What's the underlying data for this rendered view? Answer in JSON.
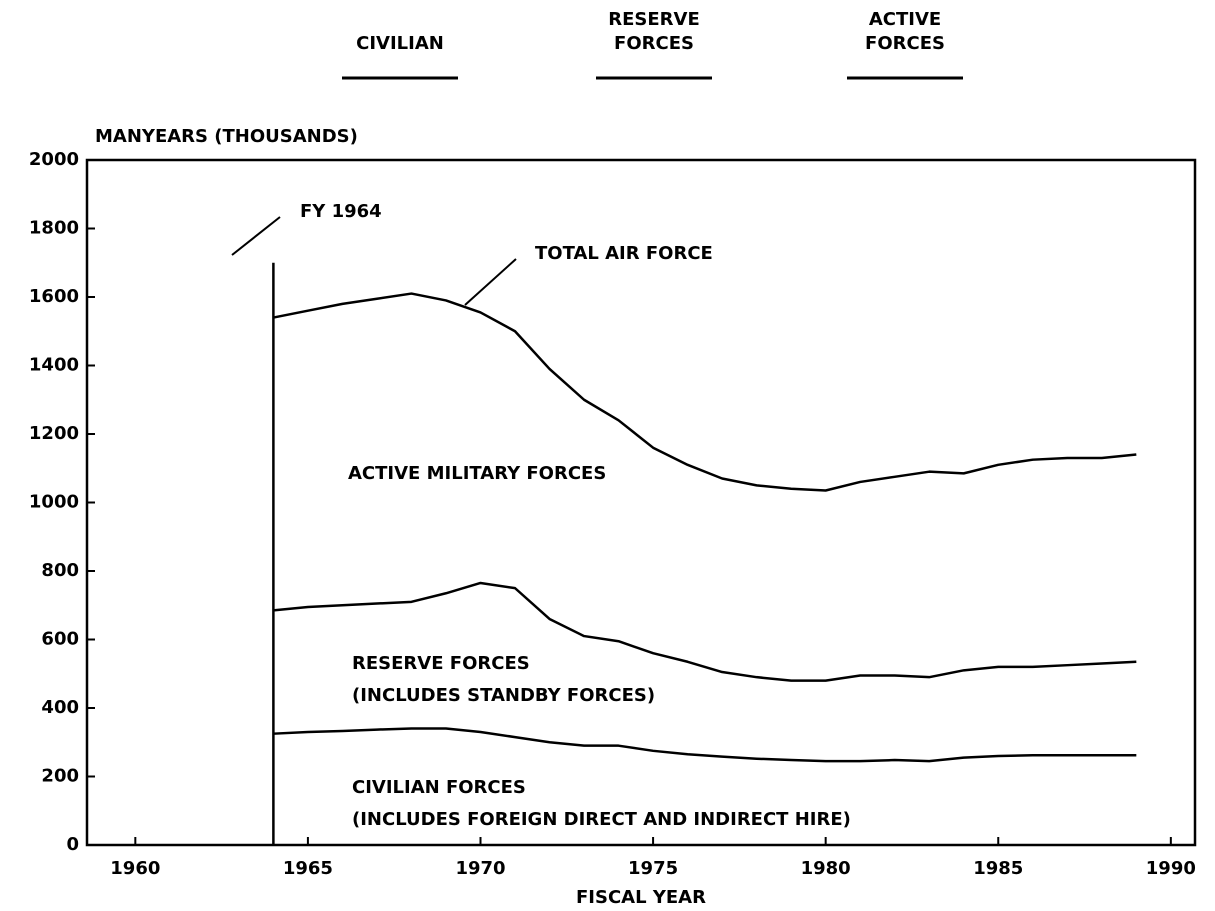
{
  "chart_data": {
    "type": "line",
    "y_label": "MANYEARS (THOUSANDS)",
    "x_label": "FISCAL YEAR",
    "x": [
      1964,
      1965,
      1966,
      1967,
      1968,
      1969,
      1970,
      1971,
      1972,
      1973,
      1974,
      1975,
      1976,
      1977,
      1978,
      1979,
      1980,
      1981,
      1982,
      1983,
      1984,
      1985,
      1986,
      1987,
      1988,
      1989
    ],
    "series": [
      {
        "name": "CIVILIAN",
        "color": "#000000",
        "values": [
          325,
          330,
          333,
          337,
          340,
          340,
          330,
          315,
          300,
          290,
          290,
          275,
          265,
          258,
          252,
          248,
          245,
          245,
          248,
          245,
          255,
          260,
          262,
          262,
          262,
          262
        ]
      },
      {
        "name": "RESERVE FORCES",
        "color": "#000000",
        "values": [
          685,
          695,
          700,
          705,
          710,
          735,
          765,
          750,
          660,
          610,
          595,
          560,
          535,
          505,
          490,
          480,
          480,
          495,
          495,
          490,
          510,
          520,
          520,
          525,
          530,
          535
        ]
      },
      {
        "name": "ACTIVE FORCES",
        "color": "#000000",
        "values": [
          1540,
          1560,
          1580,
          1595,
          1610,
          1590,
          1555,
          1500,
          1390,
          1300,
          1240,
          1160,
          1110,
          1070,
          1050,
          1040,
          1035,
          1060,
          1075,
          1090,
          1085,
          1110,
          1125,
          1130,
          1130,
          1140
        ]
      }
    ],
    "vline": {
      "x": 1964,
      "y": 1700,
      "label": "FY 1964"
    },
    "annotations": [
      "TOTAL AIR FORCE",
      "ACTIVE MILITARY FORCES",
      "RESERVE FORCES",
      "(INCLUDES STANDBY FORCES)",
      "CIVILIAN FORCES",
      "(INCLUDES FOREIGN DIRECT AND INDIRECT HIRE)"
    ],
    "xlim": [
      1958.6,
      1990.7
    ],
    "xticks": [
      1960,
      1965,
      1970,
      1975,
      1980,
      1985,
      1990
    ],
    "ylim": [
      0,
      2000
    ],
    "yticks": [
      0,
      200,
      400,
      600,
      800,
      1000,
      1200,
      1400,
      1600,
      1800,
      2000
    ],
    "grid": false
  }
}
